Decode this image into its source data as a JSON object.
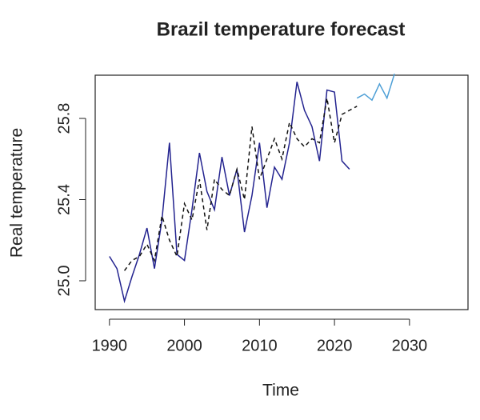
{
  "chart_data": {
    "type": "line",
    "title": "Brazil temperature forecast",
    "xlabel": "Time",
    "ylabel": "Real temperature",
    "xlim": [
      1988.1,
      2037.8
    ],
    "ylim": [
      24.858,
      26.013
    ],
    "xticks": [
      1990,
      2000,
      2010,
      2020,
      2030
    ],
    "yticks": [
      {
        "value": 25.0,
        "label": "25.0"
      },
      {
        "value": 25.4,
        "label": "25.4"
      },
      {
        "value": 25.8,
        "label": "25.8"
      }
    ],
    "series": [
      {
        "color": "#23238f",
        "linestyle": "solid",
        "x": [
          1990,
          1991,
          1992,
          1993,
          1994,
          1995,
          1996,
          1997,
          1998,
          1999,
          2000,
          2001,
          2002,
          2003,
          2004,
          2005,
          2006,
          2007,
          2008,
          2009,
          2010,
          2011,
          2012,
          2013,
          2014,
          2015,
          2016,
          2017,
          2018,
          2019,
          2020,
          2021,
          2022
        ],
        "values": [
          25.12,
          25.06,
          24.9,
          25.02,
          25.13,
          25.26,
          25.06,
          25.3,
          25.68,
          25.13,
          25.1,
          25.35,
          25.63,
          25.44,
          25.35,
          25.61,
          25.42,
          25.55,
          25.24,
          25.42,
          25.68,
          25.36,
          25.56,
          25.5,
          25.68,
          25.98,
          25.84,
          25.76,
          25.59,
          25.94,
          25.93,
          25.59,
          25.55
        ]
      },
      {
        "color": "#111111",
        "linestyle": "dashed",
        "x": [
          1992,
          1993,
          1994,
          1995,
          1996,
          1997,
          1998,
          1999,
          2000,
          2001,
          2002,
          2003,
          2004,
          2005,
          2006,
          2007,
          2008,
          2009,
          2010,
          2011,
          2012,
          2013,
          2014,
          2015,
          2016,
          2017,
          2018,
          2019,
          2020,
          2021,
          2022,
          2023
        ],
        "values": [
          25.05,
          25.1,
          25.12,
          25.18,
          25.1,
          25.32,
          25.2,
          25.12,
          25.38,
          25.3,
          25.5,
          25.25,
          25.5,
          25.45,
          25.42,
          25.55,
          25.4,
          25.76,
          25.5,
          25.6,
          25.7,
          25.6,
          25.78,
          25.7,
          25.66,
          25.7,
          25.68,
          25.9,
          25.68,
          25.82,
          25.84,
          25.86
        ]
      },
      {
        "color": "#4d9fd6",
        "linestyle": "solid",
        "x": [
          2023,
          2024,
          2025,
          2026,
          2027,
          2028
        ],
        "values": [
          25.9,
          25.92,
          25.89,
          25.97,
          25.9,
          26.02
        ]
      }
    ]
  }
}
